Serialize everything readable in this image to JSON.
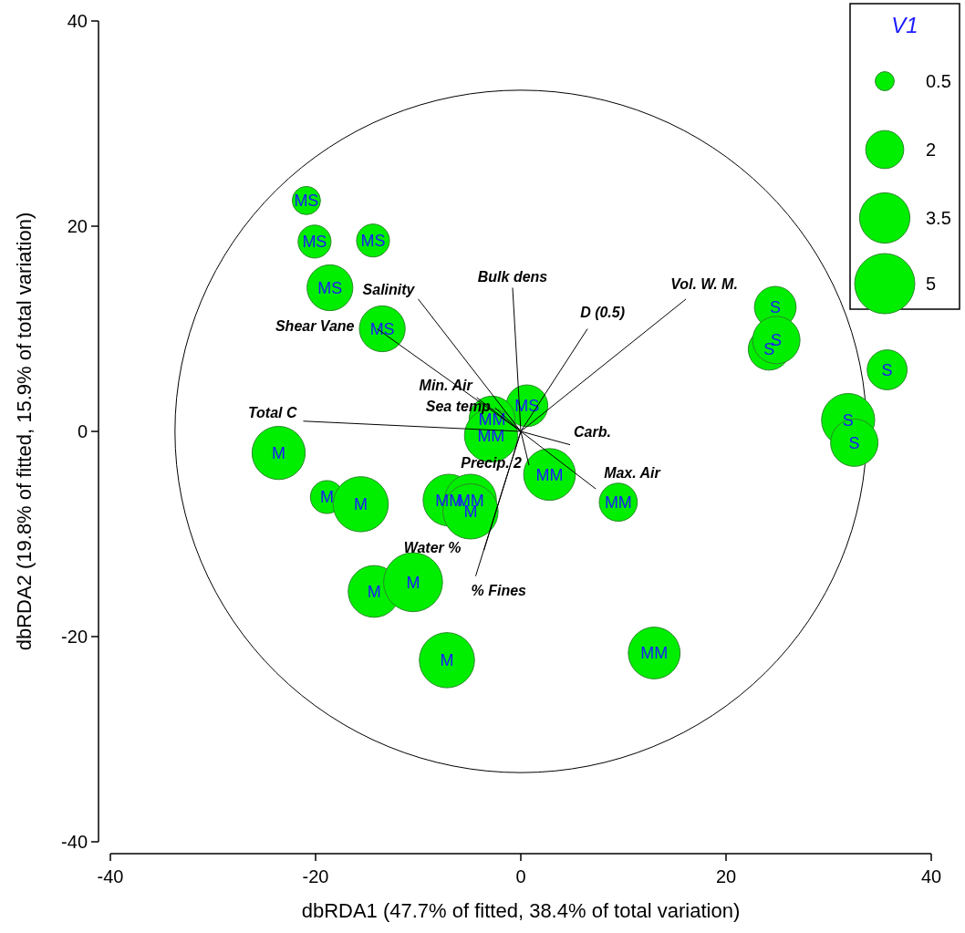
{
  "chart_data": {
    "type": "bubble",
    "xlabel": "dbRDA1 (47.7% of fitted, 38.4% of total variation)",
    "ylabel": "dbRDA2 (19.8% of fitted, 15.9% of total variation)",
    "xlim": [
      -40,
      40
    ],
    "ylim": [
      -40,
      40
    ],
    "xticks": [
      -40,
      -20,
      0,
      20,
      40
    ],
    "yticks": [
      -40,
      -20,
      0,
      20,
      40
    ],
    "legend_title": "V1",
    "size_legend": [
      0.5,
      2,
      3.5,
      5
    ],
    "series": [
      {
        "color": "#00ee00",
        "x": [
          -20.9,
          -20.1,
          -14.4,
          -18.6,
          -13.5,
          0.6,
          -2.8,
          -2.9,
          -23.6,
          -18.9,
          -15.6,
          -7.0,
          -4.9,
          -4.9,
          2.8,
          9.5,
          -14.3,
          -10.5,
          -7.2,
          13.0,
          24.8,
          24.2,
          24.9,
          35.7,
          31.9,
          32.5
        ],
        "values": [
          22.5,
          18.5,
          18.6,
          14.0,
          10.0,
          2.5,
          1.2,
          -0.4,
          -2.1,
          -6.4,
          -7.1,
          -6.7,
          -6.7,
          -7.8,
          -4.2,
          -6.9,
          -15.6,
          -14.7,
          -22.3,
          -21.6,
          12.1,
          8.0,
          8.9,
          6.0,
          1.1,
          -1.1
        ],
        "sizes": [
          1.1,
          1.5,
          1.5,
          2.9,
          2.9,
          2.4,
          2.9,
          3.9,
          3.9,
          1.5,
          4.2,
          3.7,
          3.7,
          4.2,
          3.7,
          2.0,
          3.7,
          4.8,
          4.2,
          3.7,
          2.4,
          2.4,
          3.1,
          2.2,
          3.9,
          3.1
        ],
        "value_labels": [
          "MS",
          "MS",
          "MS",
          "MS",
          "MS",
          "MS",
          "MM",
          "MM",
          "M",
          "M",
          "M",
          "MM",
          "MM",
          "M",
          "MM",
          "MM",
          "M",
          "M",
          "M",
          "MM",
          "S",
          "S",
          "S",
          "S",
          "S",
          "S"
        ]
      },
      {
        "type": "line",
        "color": "#000000",
        "x": [
          0,
          -0.8
        ],
        "values": [
          0,
          14.0
        ]
      },
      {
        "type": "line",
        "color": "#000000",
        "x": [
          0,
          -10.0
        ],
        "values": [
          0,
          12.9
        ]
      },
      {
        "type": "line",
        "color": "#000000",
        "x": [
          0,
          6.5
        ],
        "values": [
          0,
          10.0
        ]
      },
      {
        "type": "line",
        "color": "#000000",
        "x": [
          0,
          16.1
        ],
        "values": [
          0,
          12.9
        ]
      },
      {
        "type": "line",
        "color": "#000000",
        "x": [
          0,
          -14.0
        ],
        "values": [
          0,
          10.0
        ]
      },
      {
        "type": "line",
        "color": "#000000",
        "x": [
          0,
          -4.3
        ],
        "values": [
          0,
          3.3
        ]
      },
      {
        "type": "line",
        "color": "#000000",
        "x": [
          0,
          -2.5
        ],
        "values": [
          0,
          2.3
        ]
      },
      {
        "type": "line",
        "color": "#000000",
        "x": [
          0,
          -21.2
        ],
        "values": [
          0,
          1.0
        ]
      },
      {
        "type": "line",
        "color": "#000000",
        "x": [
          0,
          4.8
        ],
        "values": [
          0,
          -1.3
        ]
      },
      {
        "type": "line",
        "color": "#000000",
        "x": [
          0,
          7.3
        ],
        "values": [
          0,
          -5.6
        ]
      },
      {
        "type": "line",
        "color": "#000000",
        "x": [
          0,
          0.8
        ],
        "values": [
          0,
          -3.3
        ]
      },
      {
        "type": "line",
        "color": "#000000",
        "x": [
          0,
          -3.6
        ],
        "values": [
          0,
          -11.6
        ]
      },
      {
        "type": "line",
        "color": "#000000",
        "x": [
          0,
          -4.4
        ],
        "values": [
          0,
          -14.1
        ]
      }
    ],
    "annotations": [
      {
        "text": "Bulk dens",
        "x": -0.8,
        "y": 14.0
      },
      {
        "text": "Salinity",
        "x": -10.0,
        "y": 12.9
      },
      {
        "text": "D (0.5)",
        "x": 6.5,
        "y": 10.0
      },
      {
        "text": "Vol. W. M.",
        "x": 16.1,
        "y": 12.9
      },
      {
        "text": "Shear Vane",
        "x": -14.0,
        "y": 10.0
      },
      {
        "text": "Min. Air",
        "x": -4.3,
        "y": 3.3
      },
      {
        "text": "Sea temp",
        "x": -2.5,
        "y": 2.3
      },
      {
        "text": "Total C",
        "x": -21.2,
        "y": 1.0
      },
      {
        "text": "Carb.",
        "x": 4.8,
        "y": -1.3
      },
      {
        "text": "Max. Air",
        "x": 7.3,
        "y": -5.6
      },
      {
        "text": "Precip. 2",
        "x": 0.8,
        "y": -3.3
      },
      {
        "text": "Water %",
        "x": -3.6,
        "y": -11.6
      },
      {
        "text": "% Fines",
        "x": -4.4,
        "y": -14.1
      }
    ]
  }
}
